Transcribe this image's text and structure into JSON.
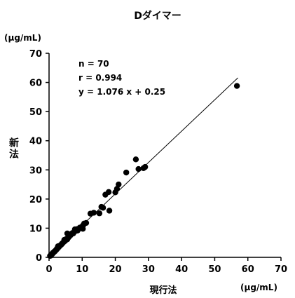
{
  "chart_data": {
    "type": "scatter",
    "title": "Dダイマー",
    "xlabel": "現行法",
    "ylabel": "新法",
    "y_unit": "(µg/mL)",
    "x_unit": "(μg/mL)",
    "xlim": [
      0,
      70
    ],
    "ylim": [
      0,
      70
    ],
    "x_ticks": [
      0,
      10,
      20,
      30,
      40,
      50,
      60,
      70
    ],
    "y_ticks": [
      0,
      10,
      20,
      30,
      40,
      50,
      60,
      70
    ],
    "grid": false,
    "annotations": [
      "n = 70",
      "r = 0.994",
      "y = 1.076 x + 0.25"
    ],
    "regression": {
      "slope": 1.076,
      "intercept": 0.25,
      "x_range": [
        0,
        57
      ]
    },
    "points": [
      [
        0.3,
        0.5
      ],
      [
        0.5,
        0.6
      ],
      [
        0.6,
        0.9
      ],
      [
        0.8,
        1.0
      ],
      [
        1.0,
        1.2
      ],
      [
        1.1,
        1.5
      ],
      [
        1.3,
        1.6
      ],
      [
        1.5,
        1.8
      ],
      [
        1.6,
        2.0
      ],
      [
        1.8,
        2.1
      ],
      [
        2.0,
        2.4
      ],
      [
        2.2,
        2.6
      ],
      [
        2.4,
        3.0
      ],
      [
        2.6,
        3.1
      ],
      [
        2.8,
        3.4
      ],
      [
        3.0,
        3.6
      ],
      [
        3.2,
        3.9
      ],
      [
        3.4,
        4.1
      ],
      [
        3.6,
        4.3
      ],
      [
        3.8,
        4.5
      ],
      [
        4.0,
        4.8
      ],
      [
        4.2,
        5.0
      ],
      [
        4.5,
        5.4
      ],
      [
        4.8,
        5.6
      ],
      [
        5.0,
        5.9
      ],
      [
        5.2,
        6.3
      ],
      [
        5.5,
        6.2
      ],
      [
        5.8,
        6.8
      ],
      [
        6.0,
        7.0
      ],
      [
        6.2,
        7.4
      ],
      [
        6.5,
        7.6
      ],
      [
        6.8,
        8.0
      ],
      [
        7.0,
        8.3
      ],
      [
        7.3,
        8.2
      ],
      [
        7.6,
        8.8
      ],
      [
        8.0,
        9.0
      ],
      [
        8.3,
        9.4
      ],
      [
        8.6,
        9.2
      ],
      [
        9.0,
        9.8
      ],
      [
        9.3,
        10.2
      ],
      [
        9.6,
        10.0
      ],
      [
        10.0,
        10.6
      ],
      [
        10.3,
        11.0
      ],
      [
        10.6,
        11.6
      ],
      [
        5.5,
        8.2
      ],
      [
        6.2,
        7.9
      ],
      [
        7.8,
        9.6
      ],
      [
        8.5,
        9.7
      ],
      [
        10.2,
        9.8
      ],
      [
        11.2,
        11.8
      ],
      [
        12.5,
        15.0
      ],
      [
        13.5,
        15.3
      ],
      [
        15.2,
        15.1
      ],
      [
        15.8,
        17.3
      ],
      [
        16.3,
        17.0
      ],
      [
        17.0,
        21.5
      ],
      [
        18.0,
        22.4
      ],
      [
        18.2,
        16.0
      ],
      [
        20.0,
        22.3
      ],
      [
        20.5,
        23.5
      ],
      [
        21.0,
        25.0
      ],
      [
        23.3,
        29.1
      ],
      [
        26.2,
        33.6
      ],
      [
        27.0,
        30.3
      ],
      [
        28.5,
        30.6
      ],
      [
        29.0,
        31.0
      ],
      [
        56.7,
        58.8
      ],
      [
        2.7,
        3.8
      ],
      [
        3.9,
        4.7
      ],
      [
        4.6,
        6.0
      ]
    ]
  }
}
